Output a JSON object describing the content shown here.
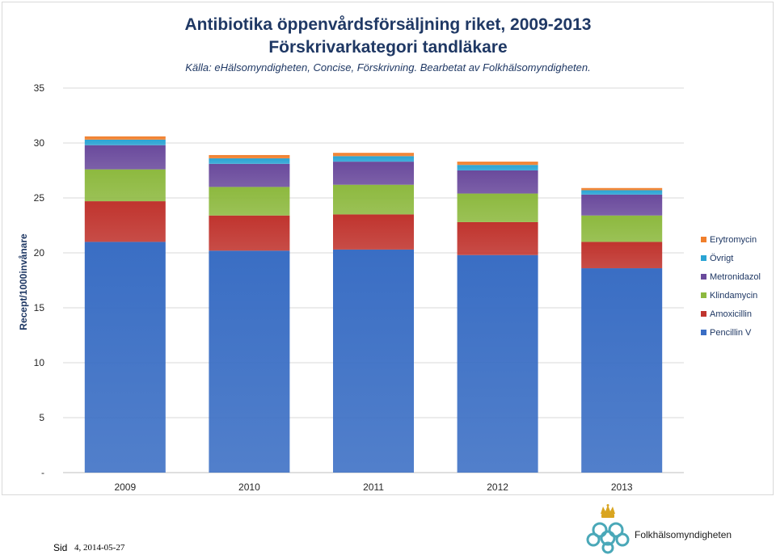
{
  "chart_data": {
    "type": "bar",
    "stacked": true,
    "title": "Antibiotika öppenvårdsförsäljning riket, 2009-2013",
    "subtitle": "Förskrivarkategori tandläkare",
    "source": "Källa: eHälsomyndigheten, Concise, Förskrivning. Bearbetat av Folkhälsomyndigheten.",
    "ylabel": "Recept/1000invånare",
    "xlabel": "",
    "ylim": [
      0,
      35
    ],
    "yticks": [
      0,
      5,
      10,
      15,
      20,
      25,
      30,
      35
    ],
    "ytick_labels": [
      "-",
      "5",
      "10",
      "15",
      "20",
      "25",
      "30",
      "35"
    ],
    "categories": [
      "2009",
      "2010",
      "2011",
      "2012",
      "2013"
    ],
    "legend_position": "right",
    "grid": true,
    "series": [
      {
        "name": "Pencillin V",
        "color": "#3a6ec4",
        "values": [
          21.0,
          20.2,
          20.3,
          19.8,
          18.6
        ]
      },
      {
        "name": "Amoxicillin",
        "color": "#c0342e",
        "values": [
          3.7,
          3.2,
          3.2,
          3.0,
          2.4
        ]
      },
      {
        "name": "Klindamycin",
        "color": "#8db93f",
        "values": [
          2.9,
          2.6,
          2.7,
          2.6,
          2.4
        ]
      },
      {
        "name": "Metronidazol",
        "color": "#6a4a9c",
        "values": [
          2.2,
          2.1,
          2.1,
          2.1,
          1.9
        ]
      },
      {
        "name": "Övrigt",
        "color": "#2aa4d4",
        "values": [
          0.5,
          0.5,
          0.5,
          0.5,
          0.4
        ]
      },
      {
        "name": "Erytromycin",
        "color": "#f07f2c",
        "values": [
          0.3,
          0.3,
          0.3,
          0.3,
          0.2
        ]
      }
    ]
  },
  "footer": {
    "sid_label": "Sid",
    "page_date": "4, 2014-05-27"
  },
  "organization": {
    "name": "Folkhälsomyndigheten"
  }
}
